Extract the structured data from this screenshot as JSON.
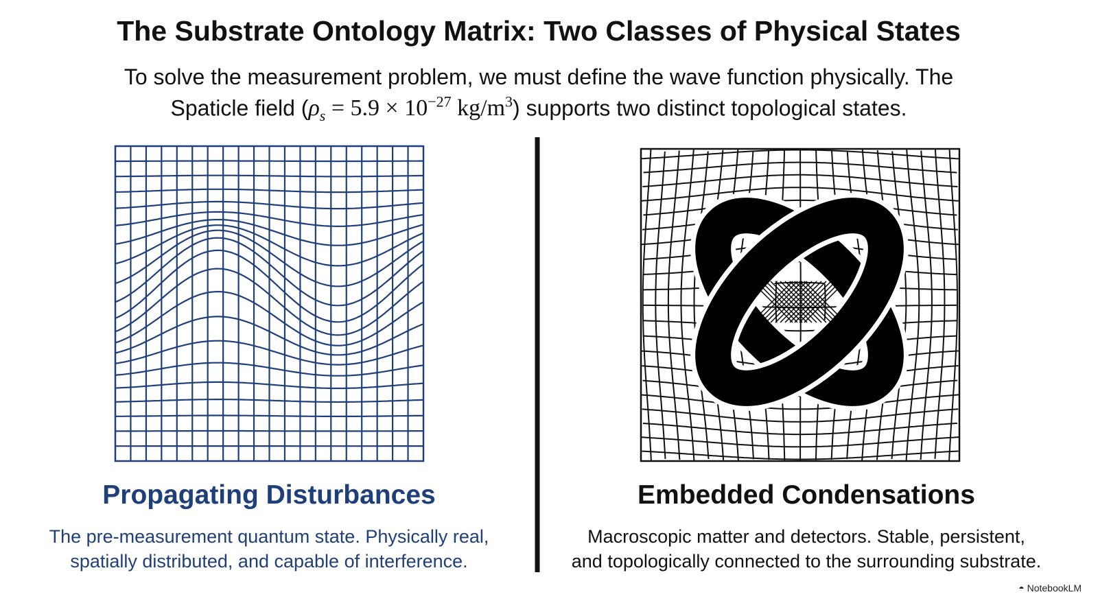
{
  "header": {
    "title": "The Substrate Ontology Matrix: Two Classes of Physical States",
    "subtitle": {
      "line1": "To solve the measurement problem, we must define the wave function physically. The",
      "line2_start": "Spaticle field (",
      "rho": "ρ",
      "rho_sub": "s",
      "equals": "= 5.9 × 10",
      "exponent": "−27",
      "unit": "kg/m",
      "unit_exp": "3",
      "line2_end": ") supports two distinct topological states."
    }
  },
  "panels": [
    {
      "heading": "Propagating Disturbances",
      "description": [
        "The pre-measurement quantum state. Physically real,",
        "spatially distributed, and capable of interference."
      ]
    },
    {
      "heading": "Embedded Condensations",
      "description": [
        "Macroscopic matter and detectors. Stable, persistent,",
        "and topologically connected to the surrounding substrate."
      ]
    }
  ],
  "footer": {
    "brand": "NotebookLM"
  }
}
